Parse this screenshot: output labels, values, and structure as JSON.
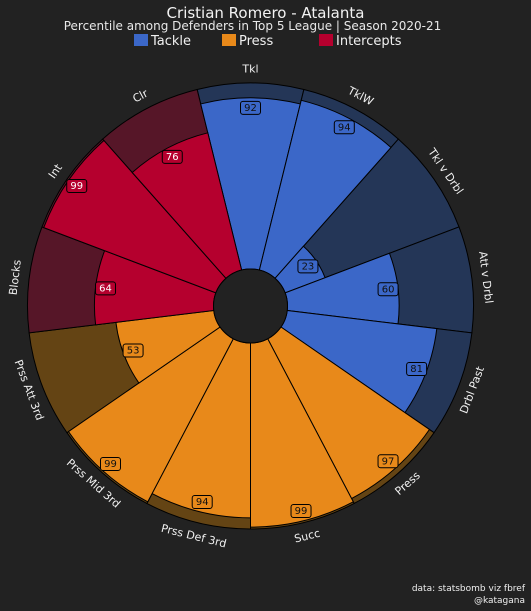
{
  "header": {
    "title": "Cristian Romero - Atalanta",
    "subtitle": "Percentile among Defenders in Top 5 League | Season 2020-21"
  },
  "legend": [
    {
      "label": "Tackle",
      "color": "#3b67c8"
    },
    {
      "label": "Press",
      "color": "#e8891a"
    },
    {
      "label": "Intercepts",
      "color": "#b5002e"
    }
  ],
  "credit": {
    "line1": "data: statsbomb viz fbref",
    "line2": "@katagana"
  },
  "chart_data": {
    "type": "pizza",
    "rlim": [
      0,
      100
    ],
    "categories": [
      "Tkl",
      "TklW",
      "Tkl v Drbl",
      "Att v Drbl",
      "Drbl Past",
      "Press",
      "Succ",
      "Prss Def 3rd",
      "Prss Mid 3rd",
      "Prss Att 3rd",
      "Blocks",
      "Int",
      "Clr"
    ],
    "values": [
      92,
      94,
      23,
      60,
      81,
      97,
      99,
      94,
      99,
      53,
      64,
      99,
      76
    ],
    "groups": [
      "Tackle",
      "Tackle",
      "Tackle",
      "Tackle",
      "Tackle",
      "Press",
      "Press",
      "Press",
      "Press",
      "Press",
      "Intercepts",
      "Intercepts",
      "Intercepts"
    ],
    "colors": {
      "Tackle": {
        "fill": "#3b67c8",
        "background": "#243657"
      },
      "Press": {
        "fill": "#e8891a",
        "background": "#644414"
      },
      "Intercepts": {
        "fill": "#b5002e",
        "background": "#561628"
      }
    }
  }
}
